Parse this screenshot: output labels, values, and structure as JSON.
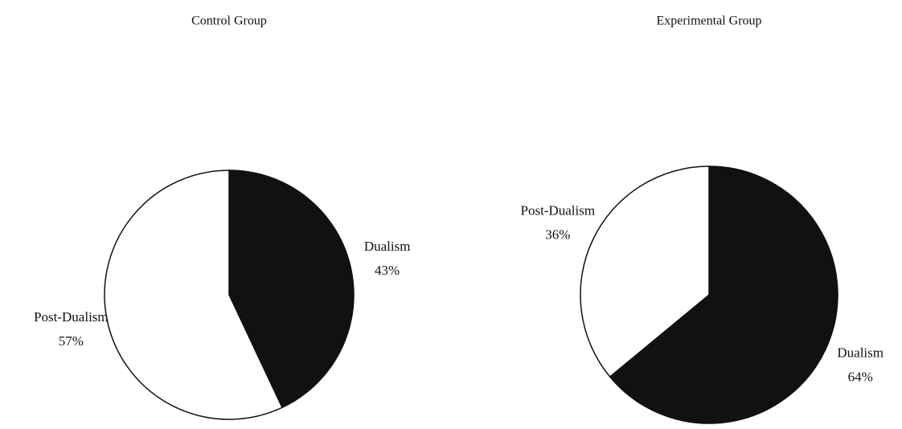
{
  "chart_data": [
    {
      "type": "pie",
      "title": "Control Group",
      "categories": [
        "Dualism",
        "Post-Dualism"
      ],
      "values": [
        43,
        57
      ],
      "value_labels": [
        "43%",
        "57%"
      ],
      "colors": [
        "#111111",
        "#ffffff"
      ]
    },
    {
      "type": "pie",
      "title": "Experimental Group",
      "categories": [
        "Dualism",
        "Post-Dualism"
      ],
      "values": [
        64,
        36
      ],
      "value_labels": [
        "64%",
        "36%"
      ],
      "colors": [
        "#111111",
        "#ffffff"
      ]
    }
  ]
}
